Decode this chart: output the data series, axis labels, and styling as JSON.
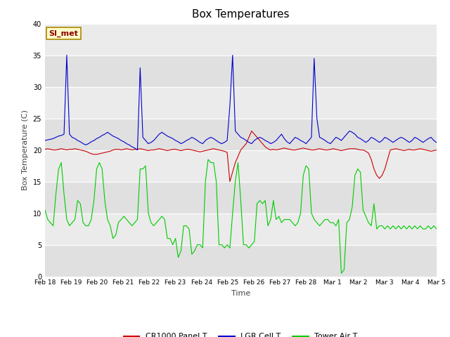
{
  "title": "Box Temperatures",
  "xlabel": "Time",
  "ylabel": "Box Temperature (C)",
  "ylim": [
    0,
    40
  ],
  "xlim": [
    0,
    15
  ],
  "figure_bg": "#ffffff",
  "plot_bg": "#e8e8e8",
  "band_colors": [
    "#e8e8e8",
    "#d8d8d8"
  ],
  "grid_color": "#ffffff",
  "annotation_text": "SI_met",
  "annotation_fg": "#8b0000",
  "annotation_bg": "#ffffcc",
  "annotation_border": "#aa8800",
  "x_tick_labels": [
    "Feb 18",
    "Feb 19",
    "Feb 20",
    "Feb 21",
    "Feb 22",
    "Feb 23",
    "Feb 24",
    "Feb 25",
    "Feb 26",
    "Feb 27",
    "Feb 28",
    "Mar 1",
    "Mar 2",
    "Mar 3",
    "Mar 4",
    "Mar 5"
  ],
  "legend_labels": [
    "CR1000 Panel T",
    "LGR Cell T",
    "Tower Air T"
  ],
  "line_colors": [
    "#cc0000",
    "#0000cc",
    "#00cc00"
  ],
  "cr1000_panel_t": [
    20.1,
    20.2,
    20.1,
    20.0,
    20.0,
    20.1,
    20.2,
    20.1,
    20.0,
    20.1,
    20.1,
    20.2,
    20.1,
    20.0,
    19.9,
    19.8,
    19.6,
    19.4,
    19.3,
    19.3,
    19.4,
    19.5,
    19.6,
    19.7,
    19.8,
    20.0,
    20.1,
    20.1,
    20.0,
    20.1,
    20.2,
    20.1,
    20.0,
    20.1,
    20.1,
    20.2,
    20.1,
    20.0,
    19.9,
    20.0,
    20.0,
    20.1,
    20.2,
    20.1,
    20.0,
    19.9,
    20.0,
    20.1,
    20.1,
    20.0,
    19.9,
    20.0,
    20.1,
    20.1,
    20.0,
    19.9,
    19.8,
    19.7,
    19.8,
    19.9,
    20.0,
    20.1,
    20.2,
    20.1,
    20.0,
    19.9,
    19.8,
    19.6,
    15.0,
    16.5,
    18.0,
    19.0,
    20.0,
    20.5,
    21.0,
    22.0,
    23.0,
    22.5,
    22.0,
    21.5,
    21.0,
    20.5,
    20.2,
    20.0,
    20.1,
    20.0,
    20.1,
    20.2,
    20.3,
    20.2,
    20.1,
    20.0,
    20.0,
    20.1,
    20.2,
    20.3,
    20.2,
    20.1,
    20.0,
    20.0,
    20.1,
    20.2,
    20.1,
    20.0,
    20.0,
    20.1,
    20.2,
    20.1,
    20.0,
    19.9,
    20.0,
    20.1,
    20.2,
    20.2,
    20.2,
    20.1,
    20.0,
    20.0,
    19.8,
    19.5,
    18.5,
    17.0,
    16.0,
    15.5,
    16.0,
    17.0,
    18.5,
    20.0,
    20.1,
    20.2,
    20.1,
    20.0,
    19.9,
    20.0,
    20.1,
    20.0,
    20.0,
    20.1,
    20.2,
    20.1,
    20.0,
    19.9,
    19.8,
    19.9,
    20.0
  ],
  "lgr_cell_t": [
    21.5,
    21.6,
    21.7,
    21.8,
    22.0,
    22.2,
    22.3,
    22.5,
    35.0,
    22.5,
    22.0,
    21.8,
    21.5,
    21.3,
    21.0,
    20.8,
    21.0,
    21.3,
    21.5,
    21.8,
    22.0,
    22.3,
    22.5,
    22.8,
    22.5,
    22.2,
    22.0,
    21.8,
    21.5,
    21.3,
    21.0,
    20.8,
    20.5,
    20.3,
    20.0,
    33.0,
    22.0,
    21.5,
    21.0,
    21.2,
    21.5,
    22.0,
    22.5,
    22.8,
    22.5,
    22.2,
    22.0,
    21.8,
    21.5,
    21.3,
    21.0,
    21.2,
    21.5,
    21.7,
    22.0,
    21.8,
    21.5,
    21.2,
    21.0,
    21.5,
    21.8,
    22.0,
    21.8,
    21.5,
    21.2,
    21.0,
    21.2,
    21.5,
    27.0,
    35.0,
    23.0,
    22.5,
    22.0,
    21.8,
    21.5,
    21.2,
    21.0,
    21.5,
    21.8,
    22.0,
    21.8,
    21.5,
    21.3,
    21.0,
    21.2,
    21.5,
    22.0,
    22.5,
    21.8,
    21.3,
    21.0,
    21.5,
    22.0,
    21.8,
    21.5,
    21.3,
    21.0,
    21.5,
    22.0,
    34.5,
    25.0,
    22.0,
    21.8,
    21.5,
    21.2,
    21.0,
    21.5,
    22.0,
    21.8,
    21.5,
    22.0,
    22.5,
    23.0,
    22.8,
    22.5,
    22.0,
    21.8,
    21.5,
    21.2,
    21.5,
    22.0,
    21.8,
    21.5,
    21.2,
    21.5,
    22.0,
    21.8,
    21.5,
    21.2,
    21.5,
    21.8,
    22.0,
    21.8,
    21.5,
    21.2,
    21.5,
    22.0,
    21.8,
    21.5,
    21.2,
    21.5,
    21.8,
    22.0,
    21.5,
    21.2
  ],
  "tower_air_t": [
    10.5,
    9.0,
    8.5,
    8.0,
    13.0,
    17.0,
    18.0,
    13.0,
    9.0,
    8.0,
    8.5,
    9.0,
    12.0,
    11.5,
    8.5,
    8.0,
    8.0,
    9.0,
    12.0,
    17.0,
    18.0,
    17.0,
    12.0,
    9.0,
    8.0,
    6.0,
    6.5,
    8.5,
    9.0,
    9.5,
    9.0,
    8.5,
    8.0,
    8.5,
    9.0,
    17.0,
    17.0,
    17.5,
    10.0,
    8.5,
    8.0,
    8.5,
    9.0,
    9.5,
    9.0,
    6.0,
    6.0,
    5.0,
    6.0,
    3.0,
    4.0,
    8.0,
    8.0,
    7.5,
    3.5,
    4.0,
    5.0,
    5.0,
    4.5,
    15.0,
    18.5,
    18.0,
    18.0,
    15.0,
    5.0,
    5.0,
    4.5,
    5.0,
    4.5,
    10.0,
    15.0,
    18.0,
    12.0,
    5.0,
    5.0,
    4.5,
    5.0,
    5.5,
    11.5,
    12.0,
    11.5,
    12.0,
    8.0,
    9.0,
    12.0,
    9.0,
    9.5,
    8.5,
    9.0,
    9.0,
    9.0,
    8.5,
    8.0,
    8.5,
    10.0,
    16.0,
    17.5,
    17.0,
    10.0,
    9.0,
    8.5,
    8.0,
    8.5,
    9.0,
    9.0,
    8.5,
    8.5,
    8.0,
    9.0,
    0.5,
    1.0,
    8.5,
    9.0,
    11.0,
    16.0,
    17.0,
    16.5,
    10.5,
    9.5,
    8.5,
    8.0,
    11.5,
    7.5,
    8.0,
    8.0,
    7.5,
    8.0,
    7.5,
    8.0,
    7.5,
    8.0,
    7.5,
    8.0,
    7.5,
    8.0,
    7.5,
    8.0,
    7.5,
    8.0,
    7.5,
    7.5,
    8.0,
    7.5,
    8.0,
    7.5
  ]
}
